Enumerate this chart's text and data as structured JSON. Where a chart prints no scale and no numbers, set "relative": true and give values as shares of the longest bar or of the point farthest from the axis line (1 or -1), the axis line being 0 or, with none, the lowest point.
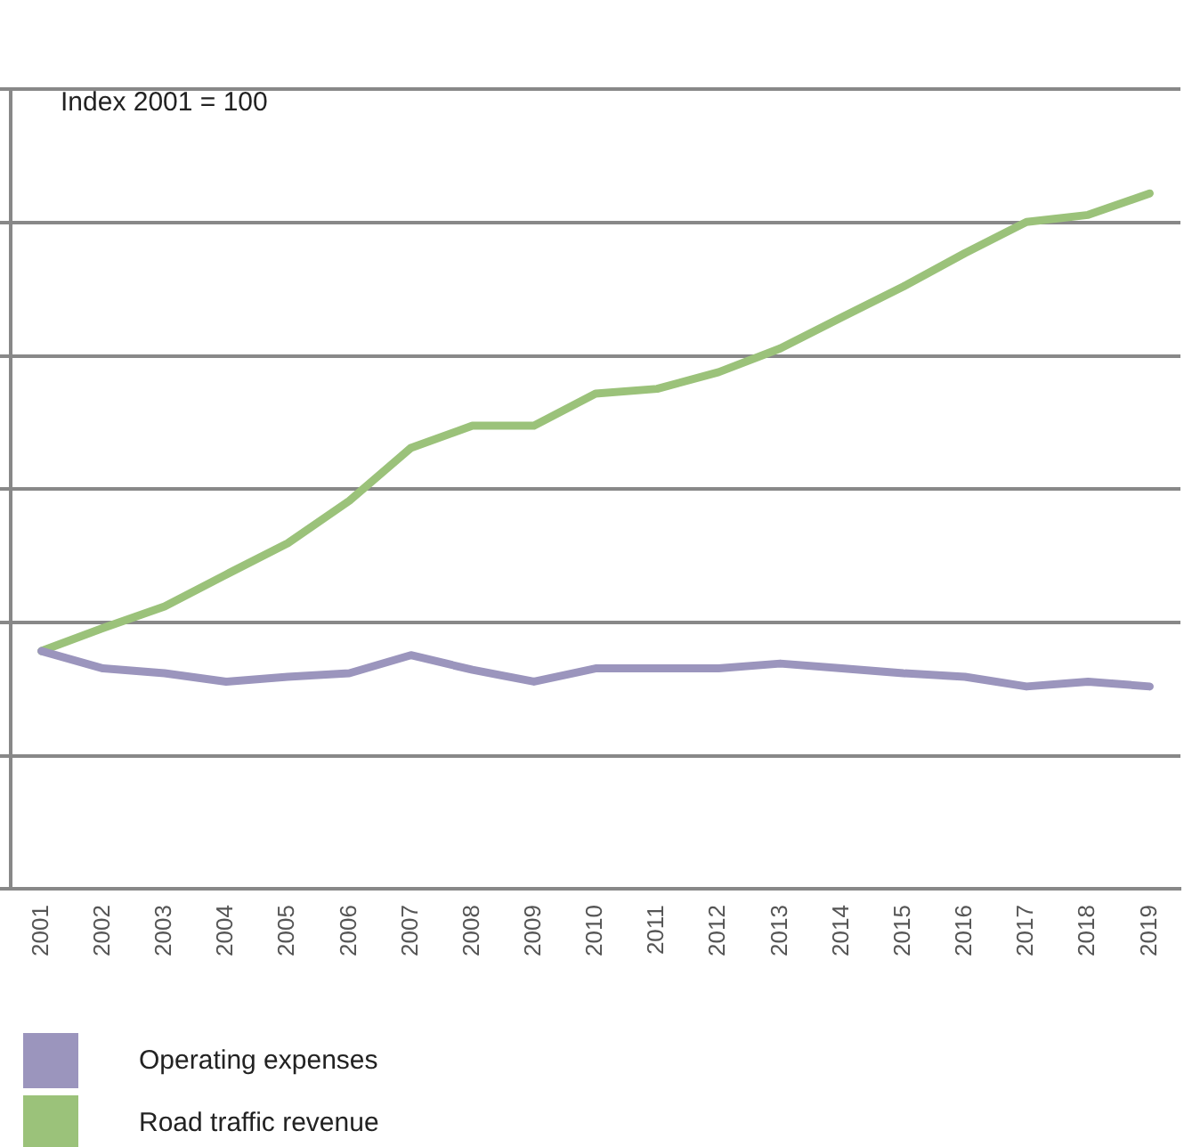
{
  "chart_data": {
    "type": "line",
    "relative": true,
    "annotations": [
      "Index 2001 = 100"
    ],
    "categories": [
      "2001",
      "2002",
      "2003",
      "2004",
      "2005",
      "2006",
      "2007",
      "2008",
      "2009",
      "2010",
      "2011",
      "2012",
      "2013",
      "2014",
      "2015",
      "2016",
      "2017",
      "2018",
      "2019"
    ],
    "series": [
      {
        "name": "Operating expenses",
        "color": "#9b95bd",
        "values": [
          0.342,
          0.317,
          0.31,
          0.298,
          0.305,
          0.31,
          0.336,
          0.315,
          0.298,
          0.317,
          0.317,
          0.317,
          0.324,
          0.317,
          0.31,
          0.305,
          0.291,
          0.298,
          0.291
        ]
      },
      {
        "name": "Road traffic revenue",
        "color": "#9bc27a",
        "values": [
          0.342,
          0.375,
          0.406,
          0.452,
          0.497,
          0.558,
          0.634,
          0.666,
          0.666,
          0.712,
          0.719,
          0.743,
          0.777,
          0.822,
          0.866,
          0.914,
          0.959,
          0.969,
          1
        ]
      }
    ],
    "grid": "y",
    "legend": "bottom",
    "marker": "none",
    "line_style": "solid"
  }
}
